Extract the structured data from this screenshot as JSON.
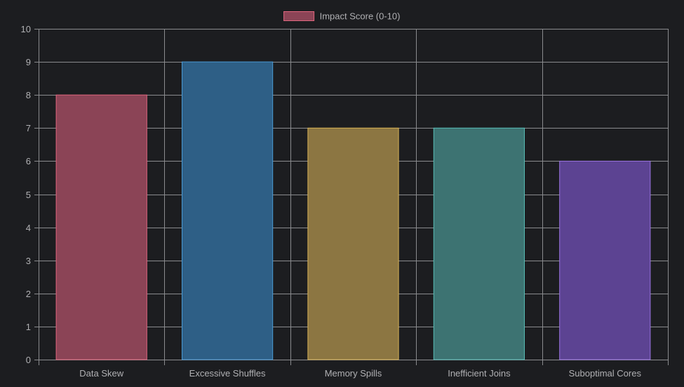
{
  "chart_data": {
    "type": "bar",
    "categories": [
      "Data Skew",
      "Excessive Shuffles",
      "Memory Spills",
      "Inefficient Joins",
      "Suboptimal Cores"
    ],
    "series": [
      {
        "name": "Impact Score (0-10)",
        "values": [
          8,
          9,
          7,
          7,
          6
        ]
      }
    ],
    "bar_colors": {
      "fill": [
        "#8b4456",
        "#2e5f86",
        "#8c7642",
        "#3d7372",
        "#5c4392"
      ],
      "border": [
        "#e0677f",
        "#4a9ad4",
        "#d8b255",
        "#57bcb6",
        "#9a73e0"
      ]
    },
    "legend": {
      "position": "top-center",
      "swatch_fill": "#8b4456",
      "swatch_border": "#e0677f"
    },
    "title": "",
    "xlabel": "",
    "ylabel": "",
    "ylim": [
      0,
      10
    ],
    "yticks": [
      0,
      1,
      2,
      3,
      4,
      5,
      6,
      7,
      8,
      9,
      10
    ],
    "grid": true,
    "colors": {
      "background": "#1c1d20",
      "grid": "#8a8b8e",
      "text": "#b0b0b3"
    }
  }
}
